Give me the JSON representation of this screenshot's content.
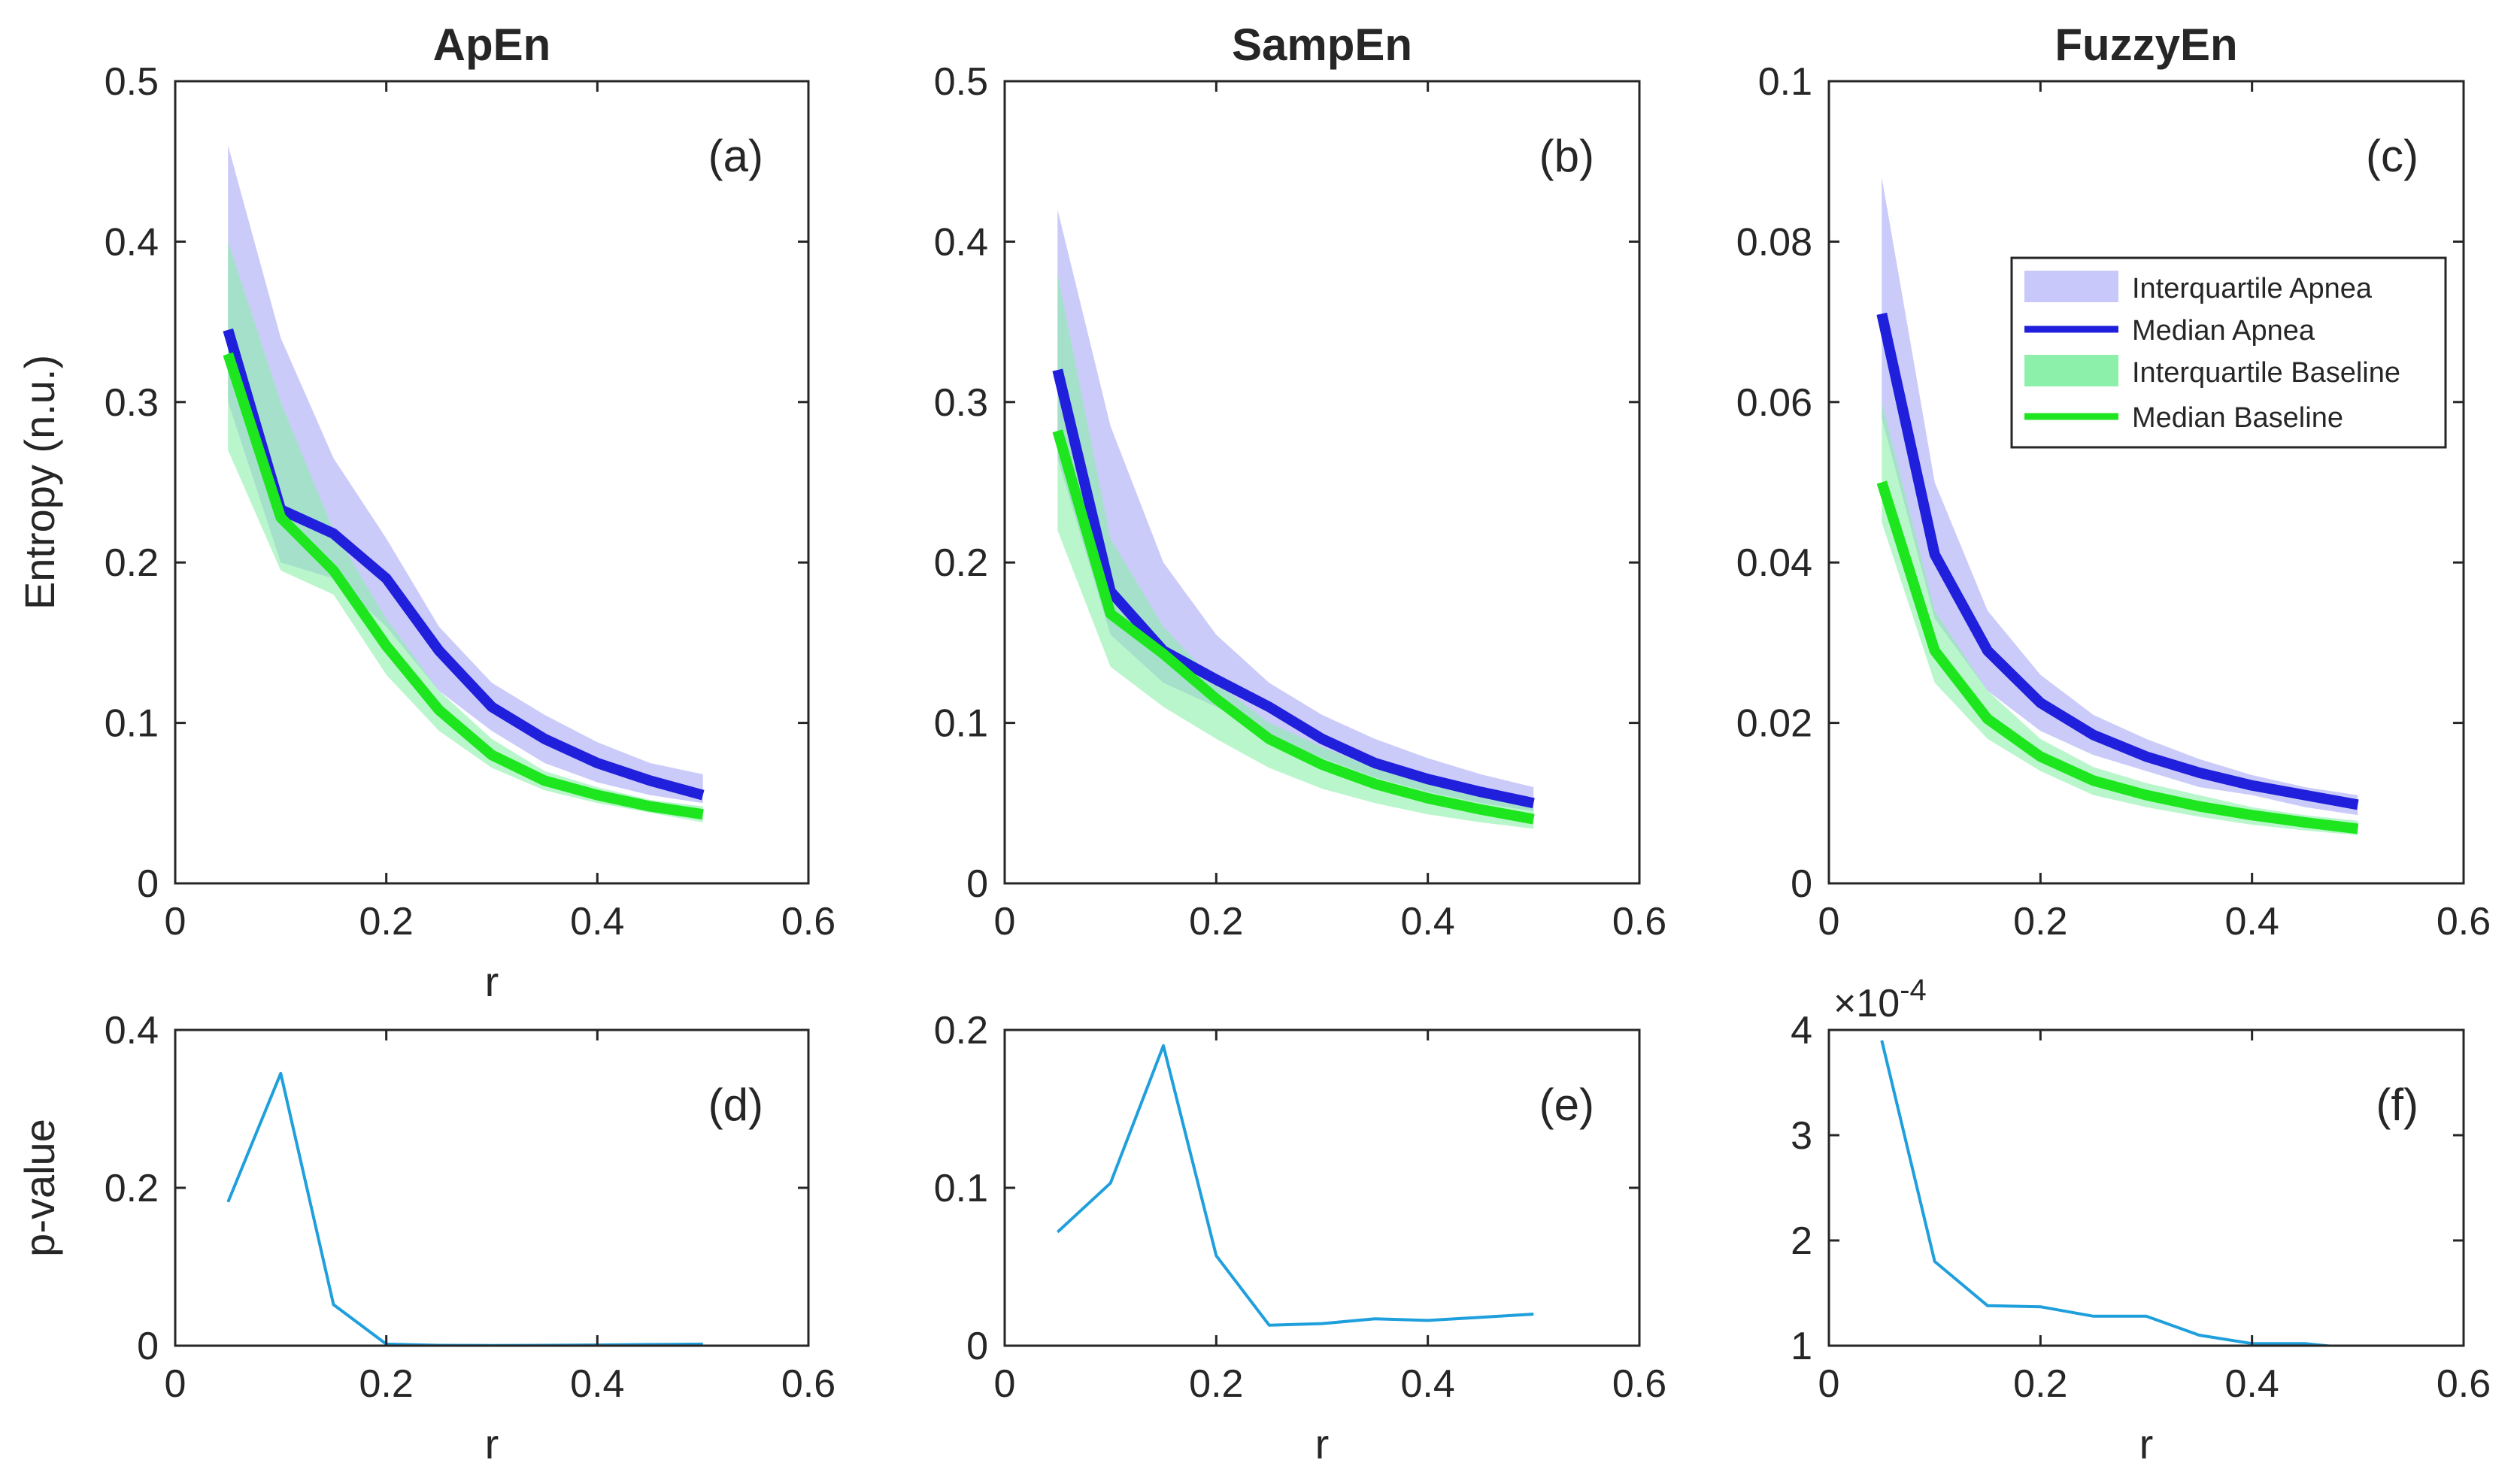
{
  "colors": {
    "apnea_band": "#c8c8fa",
    "apnea_line": "#1f1fdc",
    "baseline_band": "#8cf0aa",
    "baseline_line": "#1ee61e",
    "pvalue_line": "#1f9fdc",
    "axis": "#262626"
  },
  "legend": {
    "items": [
      "Interquartile Apnea",
      "Median Apnea",
      "Interquartile Baseline",
      "Median Baseline"
    ],
    "placement": "top-right of panel (c)"
  },
  "chart_data": [
    {
      "id": "a",
      "type": "line",
      "title": "ApEn",
      "panel_label": "(a)",
      "xlabel": "r",
      "ylabel": "Entropy (n.u.)",
      "xlim": [
        0,
        0.6
      ],
      "ylim": [
        0,
        0.5
      ],
      "xticks": [
        0,
        0.2,
        0.4,
        0.6
      ],
      "xtick_labels": [
        "0",
        "0.2",
        "0.4",
        "0.6"
      ],
      "yticks": [
        0,
        0.1,
        0.2,
        0.3,
        0.4,
        0.5
      ],
      "ytick_labels": [
        "0",
        "0.1",
        "0.2",
        "0.3",
        "0.4",
        "0.5"
      ],
      "x": [
        0.05,
        0.1,
        0.15,
        0.2,
        0.25,
        0.3,
        0.35,
        0.4,
        0.45,
        0.5
      ],
      "series": [
        {
          "key": "apnea_band",
          "kind": "band",
          "lower": [
            0.3,
            0.2,
            0.19,
            0.16,
            0.12,
            0.095,
            0.075,
            0.063,
            0.055,
            0.05
          ],
          "upper": [
            0.46,
            0.34,
            0.265,
            0.215,
            0.16,
            0.125,
            0.105,
            0.088,
            0.075,
            0.068
          ]
        },
        {
          "key": "baseline_band",
          "kind": "band",
          "lower": [
            0.27,
            0.195,
            0.18,
            0.13,
            0.095,
            0.072,
            0.058,
            0.05,
            0.044,
            0.038
          ],
          "upper": [
            0.4,
            0.3,
            0.22,
            0.165,
            0.12,
            0.09,
            0.07,
            0.06,
            0.052,
            0.048
          ]
        },
        {
          "key": "apnea_line",
          "kind": "line",
          "values": [
            0.345,
            0.233,
            0.218,
            0.19,
            0.145,
            0.11,
            0.09,
            0.075,
            0.064,
            0.055
          ]
        },
        {
          "key": "baseline_line",
          "kind": "line",
          "values": [
            0.33,
            0.228,
            0.195,
            0.148,
            0.108,
            0.08,
            0.064,
            0.055,
            0.048,
            0.043
          ]
        }
      ]
    },
    {
      "id": "b",
      "type": "line",
      "title": "SampEn",
      "panel_label": "(b)",
      "xlabel": "",
      "ylabel": "",
      "xlim": [
        0,
        0.6
      ],
      "ylim": [
        0,
        0.5
      ],
      "xticks": [
        0,
        0.2,
        0.4,
        0.6
      ],
      "xtick_labels": [
        "0",
        "0.2",
        "0.4",
        "0.6"
      ],
      "yticks": [
        0,
        0.1,
        0.2,
        0.3,
        0.4,
        0.5
      ],
      "ytick_labels": [
        "0",
        "0.1",
        "0.2",
        "0.3",
        "0.4",
        "0.5"
      ],
      "x": [
        0.05,
        0.1,
        0.15,
        0.2,
        0.25,
        0.3,
        0.35,
        0.4,
        0.45,
        0.5
      ],
      "series": [
        {
          "key": "apnea_band",
          "kind": "band",
          "lower": [
            0.265,
            0.155,
            0.125,
            0.11,
            0.093,
            0.078,
            0.066,
            0.057,
            0.05,
            0.045
          ],
          "upper": [
            0.42,
            0.285,
            0.2,
            0.155,
            0.125,
            0.105,
            0.09,
            0.078,
            0.068,
            0.06
          ]
        },
        {
          "key": "baseline_band",
          "kind": "band",
          "lower": [
            0.22,
            0.135,
            0.11,
            0.09,
            0.072,
            0.059,
            0.05,
            0.043,
            0.038,
            0.034
          ],
          "upper": [
            0.38,
            0.215,
            0.16,
            0.125,
            0.1,
            0.085,
            0.072,
            0.062,
            0.054,
            0.048
          ]
        },
        {
          "key": "apnea_line",
          "kind": "line",
          "values": [
            0.32,
            0.182,
            0.145,
            0.127,
            0.11,
            0.09,
            0.075,
            0.065,
            0.057,
            0.05
          ]
        },
        {
          "key": "baseline_line",
          "kind": "line",
          "values": [
            0.282,
            0.168,
            0.143,
            0.115,
            0.09,
            0.074,
            0.062,
            0.053,
            0.046,
            0.04
          ]
        }
      ]
    },
    {
      "id": "c",
      "type": "line",
      "title": "FuzzyEn",
      "panel_label": "(c)",
      "xlabel": "",
      "ylabel": "",
      "xlim": [
        0,
        0.6
      ],
      "ylim": [
        0,
        0.1
      ],
      "xticks": [
        0,
        0.2,
        0.4,
        0.6
      ],
      "xtick_labels": [
        "0",
        "0.2",
        "0.4",
        "0.6"
      ],
      "yticks": [
        0,
        0.02,
        0.04,
        0.06,
        0.08,
        0.1
      ],
      "ytick_labels": [
        "0",
        "0.02",
        "0.04",
        "0.06",
        "0.08",
        "0.1"
      ],
      "x": [
        0.05,
        0.1,
        0.15,
        0.2,
        0.25,
        0.3,
        0.35,
        0.4,
        0.45,
        0.5
      ],
      "series": [
        {
          "key": "apnea_band",
          "kind": "band",
          "lower": [
            0.058,
            0.033,
            0.024,
            0.019,
            0.016,
            0.014,
            0.012,
            0.011,
            0.0095,
            0.0085
          ],
          "upper": [
            0.088,
            0.05,
            0.034,
            0.026,
            0.021,
            0.018,
            0.0155,
            0.0135,
            0.012,
            0.011
          ]
        },
        {
          "key": "baseline_band",
          "kind": "band",
          "lower": [
            0.045,
            0.025,
            0.018,
            0.014,
            0.011,
            0.0095,
            0.0083,
            0.0073,
            0.0066,
            0.006
          ],
          "upper": [
            0.06,
            0.034,
            0.024,
            0.018,
            0.0145,
            0.0125,
            0.011,
            0.0095,
            0.0085,
            0.0078
          ]
        },
        {
          "key": "apnea_line",
          "kind": "line",
          "values": [
            0.071,
            0.041,
            0.029,
            0.0225,
            0.0185,
            0.0158,
            0.0138,
            0.0122,
            0.011,
            0.0098
          ]
        },
        {
          "key": "baseline_line",
          "kind": "line",
          "values": [
            0.05,
            0.029,
            0.0205,
            0.0158,
            0.0128,
            0.011,
            0.0096,
            0.0085,
            0.0076,
            0.0068
          ]
        }
      ]
    },
    {
      "id": "d",
      "type": "line",
      "title": "",
      "panel_label": "(d)",
      "xlabel": "r",
      "ylabel": "p-value",
      "xlim": [
        0,
        0.6
      ],
      "ylim": [
        0,
        0.4
      ],
      "xticks": [
        0,
        0.2,
        0.4,
        0.6
      ],
      "xtick_labels": [
        "0",
        "0.2",
        "0.4",
        "0.6"
      ],
      "yticks": [
        0,
        0.2,
        0.4
      ],
      "ytick_labels": [
        "0",
        "0.2",
        "0.4"
      ],
      "x": [
        0.05,
        0.1,
        0.15,
        0.2,
        0.25,
        0.3,
        0.35,
        0.4,
        0.45,
        0.5
      ],
      "series": [
        {
          "key": "pvalue_line",
          "kind": "line",
          "values": [
            0.182,
            0.345,
            0.052,
            0.002,
            0.0005,
            0.0003,
            0.0005,
            0.001,
            0.0015,
            0.002
          ]
        }
      ]
    },
    {
      "id": "e",
      "type": "line",
      "title": "",
      "panel_label": "(e)",
      "xlabel": "r",
      "ylabel": "",
      "xlim": [
        0,
        0.6
      ],
      "ylim": [
        0,
        0.2
      ],
      "xticks": [
        0,
        0.2,
        0.4,
        0.6
      ],
      "xtick_labels": [
        "0",
        "0.2",
        "0.4",
        "0.6"
      ],
      "yticks": [
        0,
        0.1,
        0.2
      ],
      "ytick_labels": [
        "0",
        "0.1",
        "0.2"
      ],
      "x": [
        0.05,
        0.1,
        0.15,
        0.2,
        0.25,
        0.3,
        0.35,
        0.4,
        0.45,
        0.5
      ],
      "series": [
        {
          "key": "pvalue_line",
          "kind": "line",
          "values": [
            0.072,
            0.103,
            0.19,
            0.057,
            0.013,
            0.014,
            0.017,
            0.016,
            0.018,
            0.02
          ]
        }
      ]
    },
    {
      "id": "f",
      "type": "line",
      "title": "",
      "panel_label": "(f)",
      "xlabel": "r",
      "ylabel": "",
      "xlim": [
        0,
        0.6
      ],
      "ylim": [
        1,
        4
      ],
      "exponent_label": "×10",
      "exponent_power": "-4",
      "xticks": [
        0,
        0.2,
        0.4,
        0.6
      ],
      "xtick_labels": [
        "0",
        "0.2",
        "0.4",
        "0.6"
      ],
      "yticks": [
        1,
        2,
        3,
        4
      ],
      "ytick_labels": [
        "1",
        "2",
        "3",
        "4"
      ],
      "x": [
        0.05,
        0.1,
        0.15,
        0.2,
        0.25,
        0.3,
        0.35,
        0.4,
        0.45,
        0.5
      ],
      "series": [
        {
          "key": "pvalue_line",
          "kind": "line",
          "values": [
            3.9,
            1.8,
            1.38,
            1.37,
            1.28,
            1.28,
            1.1,
            1.02,
            1.02,
            0.97
          ]
        }
      ]
    }
  ]
}
